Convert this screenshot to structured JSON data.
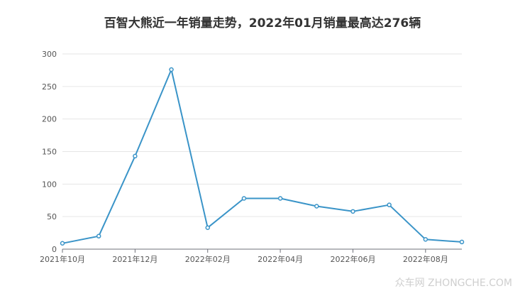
{
  "chart_data": {
    "type": "line",
    "title": "百智大熊近一年销量走势，2022年01月销量最高达276辆",
    "xlabel": "",
    "ylabel": "",
    "categories": [
      "2021年10月",
      "2021年11月",
      "2021年12月",
      "2022年01月",
      "2022年02月",
      "2022年03月",
      "2022年04月",
      "2022年05月",
      "2022年06月",
      "2022年07月",
      "2022年08月",
      "2022年09月"
    ],
    "x_tick_labels": [
      "2021年10月",
      "2021年12月",
      "2022年02月",
      "2022年04月",
      "2022年06月",
      "2022年08月"
    ],
    "y_ticks": [
      "0",
      "50",
      "100",
      "150",
      "200",
      "250",
      "300"
    ],
    "ylim": [
      0,
      300
    ],
    "grid": true,
    "series": [
      {
        "values": [
          9,
          20,
          143,
          276,
          33,
          78,
          78,
          66,
          58,
          68,
          15,
          11
        ],
        "color": "#3a94c8"
      }
    ]
  },
  "watermark": "众车网 ZHONGCHE.COM"
}
